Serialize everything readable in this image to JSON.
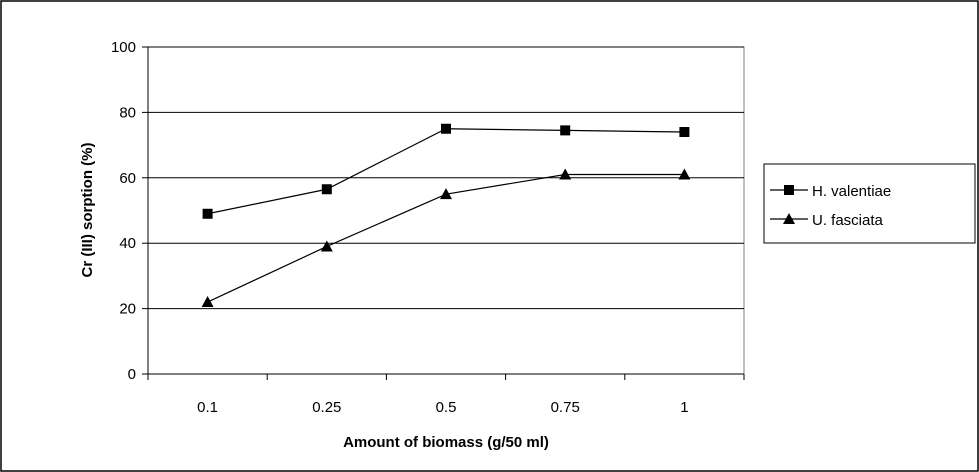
{
  "chart_data": {
    "type": "line",
    "categories": [
      "0.1",
      "0.25",
      "0.5",
      "0.75",
      "1"
    ],
    "series": [
      {
        "name": "H. valentiae",
        "marker": "square",
        "values": [
          49,
          56.5,
          75,
          74.5,
          74
        ]
      },
      {
        "name": "U. fasciata",
        "marker": "triangle",
        "values": [
          22,
          39,
          55,
          61,
          61
        ]
      }
    ],
    "xlabel": "Amount of biomass (g/50 ml)",
    "ylabel": "Cr (III) sorption (%)",
    "ylim": [
      0,
      100
    ],
    "yticks": [
      0,
      20,
      40,
      60,
      80,
      100
    ],
    "grid": true,
    "legend_position": "right",
    "line_color": "#000000"
  }
}
